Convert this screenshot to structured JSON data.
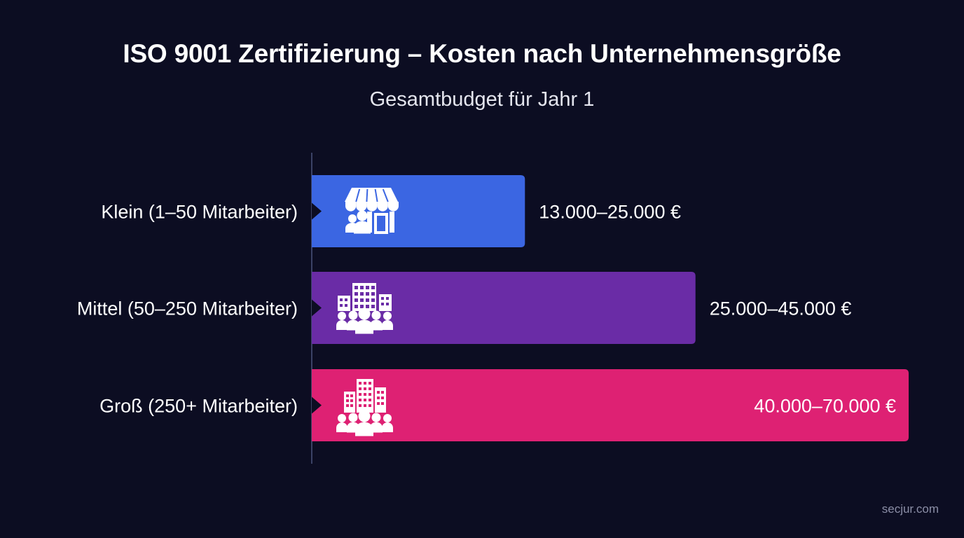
{
  "title": "ISO 9001 Zertifizierung – Kosten nach Unternehmensgröße",
  "subtitle": "Gesamtbudget für Jahr 1",
  "watermark": "secjur.com",
  "chart_data": {
    "type": "bar",
    "orientation": "horizontal",
    "title": "ISO 9001 Zertifizierung – Kosten nach Unternehmensgröße",
    "subtitle": "Gesamtbudget für Jahr 1",
    "unit": "€",
    "categories": [
      "Klein (1–50 Mitarbeiter)",
      "Mittel (50–250 Mitarbeiter)",
      "Groß (250+ Mitarbeiter)"
    ],
    "ranges": [
      [
        13000,
        25000
      ],
      [
        25000,
        45000
      ],
      [
        40000,
        70000
      ]
    ],
    "values": [
      25000,
      45000,
      70000
    ],
    "value_labels": [
      "13.000–25.000 €",
      "25.000–45.000 €",
      "40.000–70.000 €"
    ],
    "icons": [
      "store-people-icon",
      "office-team-icon",
      "skyscraper-crowd-icon"
    ],
    "colors": [
      "#3b66e2",
      "#6a2ca6",
      "#de2173"
    ],
    "xlim": [
      0,
      70000
    ],
    "grid": false,
    "legend": "none"
  }
}
